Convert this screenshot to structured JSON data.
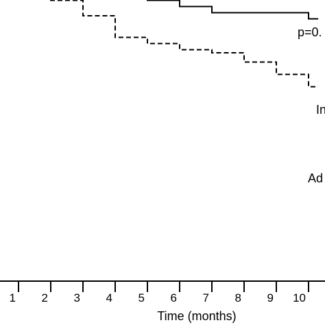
{
  "chart_data": {
    "type": "line",
    "subtype": "step (Kaplan-Meier survival curves)",
    "xlabel": "Time (months)",
    "x_ticks": [
      1,
      2,
      3,
      4,
      5,
      6,
      7,
      8,
      9,
      10
    ],
    "xlim": [
      0.35,
      10.3
    ],
    "ylim": [
      0,
      1
    ],
    "grid": false,
    "annotations": [
      "p=0.",
      "In",
      "Ad"
    ],
    "series": [
      {
        "line_style": "solid",
        "color": "#000000",
        "steps": [
          {
            "x": 0.35,
            "y": 0.96
          },
          {
            "x": 2.0,
            "y": 0.95
          },
          {
            "x": 3.0,
            "y": 0.93
          },
          {
            "x": 5.0,
            "y": 0.91
          },
          {
            "x": 6.0,
            "y": 0.89
          },
          {
            "x": 7.0,
            "y": 0.87
          },
          {
            "x": 10.0,
            "y": 0.85
          },
          {
            "x": 10.3,
            "y": 0.85
          }
        ]
      },
      {
        "line_style": "dashed",
        "color": "#000000",
        "steps": [
          {
            "x": 0.35,
            "y": 0.96
          },
          {
            "x": 2.0,
            "y": 0.91
          },
          {
            "x": 3.0,
            "y": 0.86
          },
          {
            "x": 4.0,
            "y": 0.79
          },
          {
            "x": 5.0,
            "y": 0.77
          },
          {
            "x": 6.0,
            "y": 0.75
          },
          {
            "x": 7.0,
            "y": 0.74
          },
          {
            "x": 8.0,
            "y": 0.71
          },
          {
            "x": 9.0,
            "y": 0.67
          },
          {
            "x": 10.0,
            "y": 0.63
          },
          {
            "x": 10.3,
            "y": 0.63
          }
        ]
      }
    ]
  }
}
